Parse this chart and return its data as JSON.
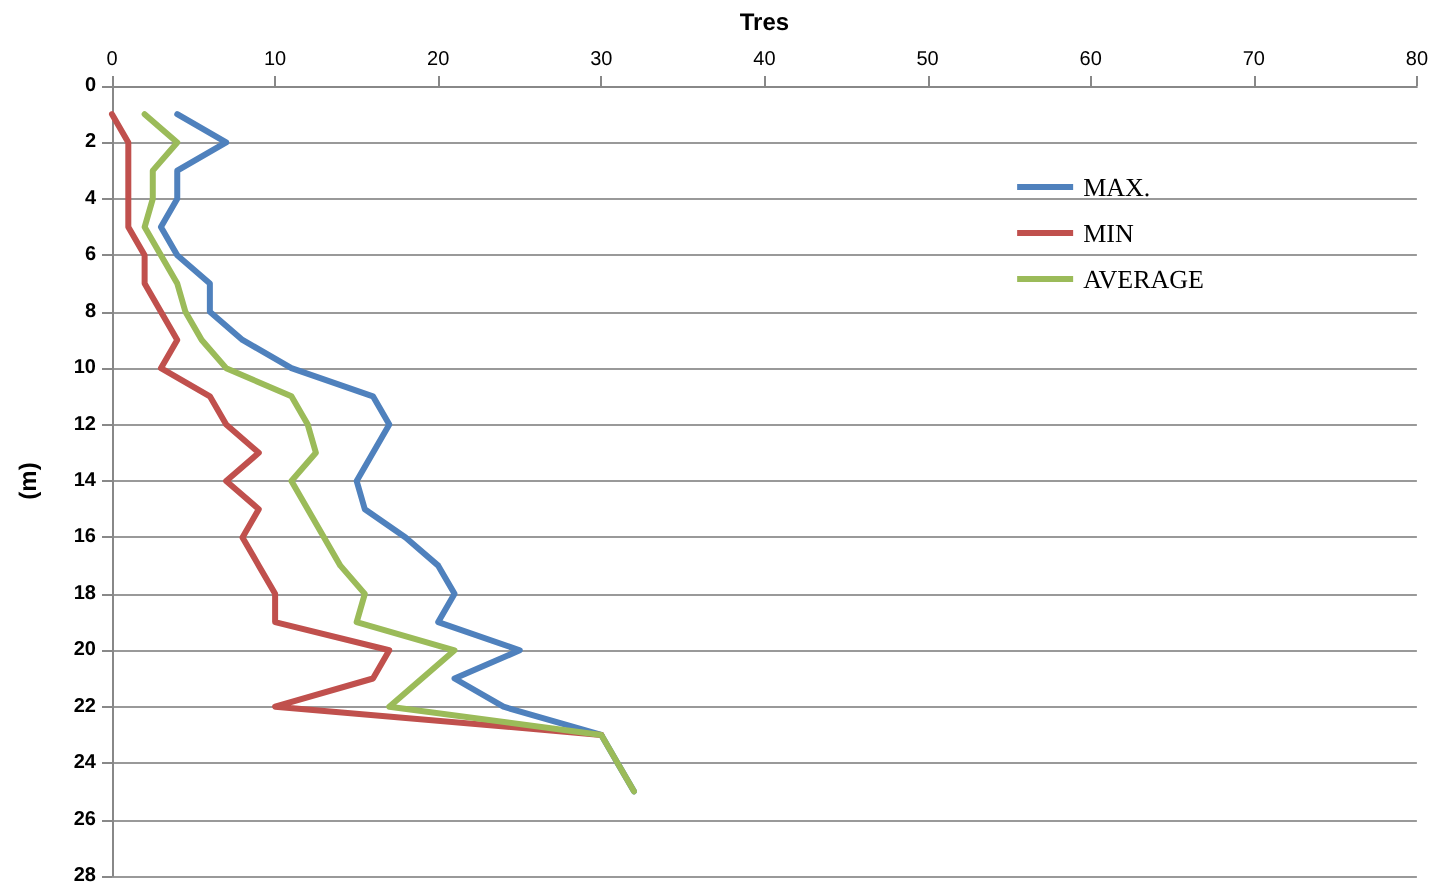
{
  "chart_data": {
    "type": "line",
    "xlabel": "Tres",
    "ylabel": "(m)",
    "xlim": [
      0,
      80
    ],
    "xticks": [
      0,
      10,
      20,
      30,
      40,
      50,
      60,
      70,
      80
    ],
    "ylim": [
      28,
      0
    ],
    "yticks": [
      0,
      2,
      4,
      6,
      8,
      10,
      12,
      14,
      16,
      18,
      20,
      22,
      24,
      26,
      28
    ],
    "grid": "y",
    "legend": "top right",
    "marker": "none",
    "line_style": "solid",
    "series": [
      {
        "name": "MAX.",
        "color": "#4f81bd",
        "x": [
          4,
          7,
          4,
          4,
          3,
          4,
          6,
          6,
          8,
          11,
          16,
          17,
          16,
          15,
          15.5,
          18,
          20,
          21,
          20,
          25,
          21,
          24,
          30,
          31,
          32
        ],
        "values": [
          1,
          2,
          3,
          4,
          5,
          6,
          7,
          8,
          9,
          10,
          11,
          12,
          13,
          14,
          15,
          16,
          17,
          18,
          19,
          20,
          21,
          22,
          23,
          24,
          25
        ]
      },
      {
        "name": "MIN",
        "color": "#c0504d",
        "x": [
          0,
          1,
          1,
          1,
          1,
          2,
          2,
          3,
          4,
          3,
          6,
          7,
          9,
          7,
          9,
          8,
          9,
          10,
          10,
          17,
          16,
          10,
          30
        ],
        "values": [
          1,
          2,
          3,
          4,
          5,
          6,
          7,
          8,
          9,
          10,
          11,
          12,
          13,
          14,
          15,
          16,
          17,
          18,
          19,
          20,
          21,
          22,
          23
        ]
      },
      {
        "name": "AVERAGE",
        "color": "#9bbb59",
        "x": [
          2,
          4,
          2.5,
          2.5,
          2,
          3,
          4,
          4.5,
          5.5,
          7,
          11,
          12,
          12.5,
          11,
          12,
          13,
          14,
          15.5,
          15,
          21,
          19,
          17,
          30,
          31,
          32
        ],
        "values": [
          1,
          2,
          3,
          4,
          5,
          6,
          7,
          8,
          9,
          10,
          11,
          12,
          13,
          14,
          15,
          16,
          17,
          18,
          19,
          20,
          21,
          22,
          23,
          24,
          25
        ]
      }
    ]
  }
}
